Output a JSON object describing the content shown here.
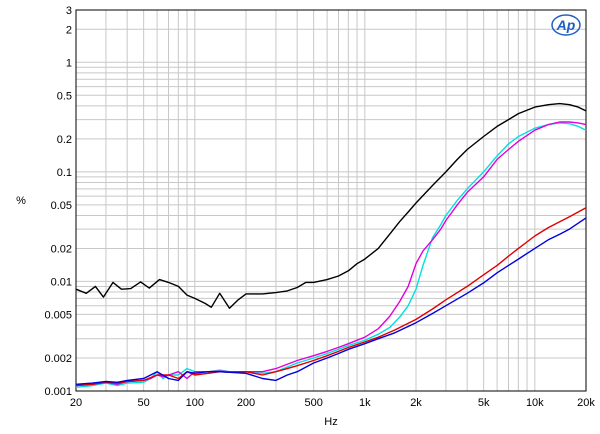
{
  "logo": {
    "text": "Ap",
    "color": "#1f5fbf"
  },
  "chart_data": {
    "type": "line",
    "xscale": "log",
    "yscale": "log",
    "xlim": [
      20,
      20000
    ],
    "ylim": [
      0.001,
      3
    ],
    "xlabel": "Hz",
    "ylabel": "%",
    "grid": true,
    "x_ticks": [
      {
        "v": 20,
        "label": "20"
      },
      {
        "v": 50,
        "label": "50"
      },
      {
        "v": 100,
        "label": "100"
      },
      {
        "v": 200,
        "label": "200"
      },
      {
        "v": 500,
        "label": "500"
      },
      {
        "v": 1000,
        "label": "1k"
      },
      {
        "v": 2000,
        "label": "2k"
      },
      {
        "v": 5000,
        "label": "5k"
      },
      {
        "v": 10000,
        "label": "10k"
      },
      {
        "v": 20000,
        "label": "20k"
      }
    ],
    "y_ticks": [
      {
        "v": 0.001,
        "label": "0.001"
      },
      {
        "v": 0.002,
        "label": "0.002"
      },
      {
        "v": 0.005,
        "label": "0.005"
      },
      {
        "v": 0.01,
        "label": "0.01"
      },
      {
        "v": 0.02,
        "label": "0.02"
      },
      {
        "v": 0.05,
        "label": "0.05"
      },
      {
        "v": 0.1,
        "label": "0.1"
      },
      {
        "v": 0.2,
        "label": "0.2"
      },
      {
        "v": 0.5,
        "label": "0.5"
      },
      {
        "v": 1,
        "label": "1"
      },
      {
        "v": 2,
        "label": "2"
      },
      {
        "v": 3,
        "label": "3"
      }
    ],
    "series": [
      {
        "color": "#000000",
        "points": [
          [
            20,
            0.0085
          ],
          [
            23,
            0.0078
          ],
          [
            26,
            0.009
          ],
          [
            29,
            0.0072
          ],
          [
            33,
            0.0098
          ],
          [
            37,
            0.0085
          ],
          [
            42,
            0.0086
          ],
          [
            48,
            0.0099
          ],
          [
            54,
            0.0087
          ],
          [
            62,
            0.0104
          ],
          [
            70,
            0.0098
          ],
          [
            80,
            0.009
          ],
          [
            90,
            0.0075
          ],
          [
            100,
            0.007
          ],
          [
            115,
            0.0063
          ],
          [
            125,
            0.0058
          ],
          [
            140,
            0.0078
          ],
          [
            160,
            0.0057
          ],
          [
            180,
            0.0068
          ],
          [
            200,
            0.0077
          ],
          [
            250,
            0.0077
          ],
          [
            300,
            0.0079
          ],
          [
            350,
            0.0082
          ],
          [
            400,
            0.0088
          ],
          [
            450,
            0.0098
          ],
          [
            500,
            0.0098
          ],
          [
            600,
            0.0104
          ],
          [
            700,
            0.0112
          ],
          [
            800,
            0.0125
          ],
          [
            900,
            0.0145
          ],
          [
            1000,
            0.016
          ],
          [
            1200,
            0.02
          ],
          [
            1400,
            0.027
          ],
          [
            1600,
            0.035
          ],
          [
            1800,
            0.043
          ],
          [
            2000,
            0.052
          ],
          [
            2500,
            0.075
          ],
          [
            3000,
            0.1
          ],
          [
            3500,
            0.13
          ],
          [
            4000,
            0.16
          ],
          [
            5000,
            0.21
          ],
          [
            6000,
            0.26
          ],
          [
            7000,
            0.3
          ],
          [
            8000,
            0.34
          ],
          [
            10000,
            0.39
          ],
          [
            12000,
            0.41
          ],
          [
            14000,
            0.42
          ],
          [
            16000,
            0.41
          ],
          [
            18000,
            0.39
          ],
          [
            20000,
            0.36
          ]
        ]
      },
      {
        "color": "#00e0e0",
        "points": [
          [
            20,
            0.00108
          ],
          [
            25,
            0.00112
          ],
          [
            30,
            0.00118
          ],
          [
            35,
            0.00112
          ],
          [
            40,
            0.00118
          ],
          [
            50,
            0.0012
          ],
          [
            55,
            0.0013
          ],
          [
            60,
            0.0015
          ],
          [
            65,
            0.0013
          ],
          [
            70,
            0.0014
          ],
          [
            80,
            0.0014
          ],
          [
            90,
            0.0016
          ],
          [
            100,
            0.0015
          ],
          [
            120,
            0.0015
          ],
          [
            140,
            0.00155
          ],
          [
            160,
            0.0015
          ],
          [
            200,
            0.0015
          ],
          [
            250,
            0.00145
          ],
          [
            300,
            0.0015
          ],
          [
            400,
            0.0018
          ],
          [
            500,
            0.002
          ],
          [
            600,
            0.0022
          ],
          [
            700,
            0.0024
          ],
          [
            800,
            0.0026
          ],
          [
            1000,
            0.0029
          ],
          [
            1200,
            0.0033
          ],
          [
            1400,
            0.0038
          ],
          [
            1600,
            0.0047
          ],
          [
            1800,
            0.006
          ],
          [
            2000,
            0.0085
          ],
          [
            2200,
            0.014
          ],
          [
            2500,
            0.025
          ],
          [
            2800,
            0.033
          ],
          [
            3000,
            0.04
          ],
          [
            3500,
            0.055
          ],
          [
            4000,
            0.07
          ],
          [
            5000,
            0.1
          ],
          [
            6000,
            0.14
          ],
          [
            7000,
            0.18
          ],
          [
            8000,
            0.21
          ],
          [
            10000,
            0.25
          ],
          [
            12000,
            0.27
          ],
          [
            14000,
            0.28
          ],
          [
            16000,
            0.275
          ],
          [
            18000,
            0.26
          ],
          [
            20000,
            0.24
          ]
        ]
      },
      {
        "color": "#e000e0",
        "points": [
          [
            20,
            0.00112
          ],
          [
            25,
            0.00115
          ],
          [
            30,
            0.0012
          ],
          [
            35,
            0.00115
          ],
          [
            40,
            0.00122
          ],
          [
            50,
            0.00125
          ],
          [
            55,
            0.0013
          ],
          [
            60,
            0.0014
          ],
          [
            65,
            0.00135
          ],
          [
            70,
            0.0014
          ],
          [
            80,
            0.0015
          ],
          [
            90,
            0.0013
          ],
          [
            100,
            0.0015
          ],
          [
            120,
            0.0015
          ],
          [
            140,
            0.00152
          ],
          [
            160,
            0.0015
          ],
          [
            200,
            0.0015
          ],
          [
            250,
            0.0015
          ],
          [
            300,
            0.0016
          ],
          [
            400,
            0.0019
          ],
          [
            500,
            0.0021
          ],
          [
            600,
            0.0023
          ],
          [
            700,
            0.0025
          ],
          [
            800,
            0.0027
          ],
          [
            1000,
            0.0031
          ],
          [
            1200,
            0.0037
          ],
          [
            1400,
            0.0048
          ],
          [
            1600,
            0.0065
          ],
          [
            1800,
            0.009
          ],
          [
            2000,
            0.0145
          ],
          [
            2200,
            0.019
          ],
          [
            2500,
            0.024
          ],
          [
            2800,
            0.03
          ],
          [
            3000,
            0.036
          ],
          [
            3500,
            0.05
          ],
          [
            4000,
            0.065
          ],
          [
            5000,
            0.09
          ],
          [
            6000,
            0.13
          ],
          [
            7000,
            0.16
          ],
          [
            8000,
            0.19
          ],
          [
            10000,
            0.24
          ],
          [
            12000,
            0.27
          ],
          [
            14000,
            0.285
          ],
          [
            16000,
            0.285
          ],
          [
            18000,
            0.28
          ],
          [
            20000,
            0.27
          ]
        ]
      },
      {
        "color": "#e00000",
        "points": [
          [
            20,
            0.00112
          ],
          [
            25,
            0.00115
          ],
          [
            30,
            0.0012
          ],
          [
            35,
            0.00118
          ],
          [
            40,
            0.00122
          ],
          [
            50,
            0.00125
          ],
          [
            60,
            0.0014
          ],
          [
            70,
            0.0014
          ],
          [
            80,
            0.0013
          ],
          [
            90,
            0.0015
          ],
          [
            100,
            0.0014
          ],
          [
            120,
            0.00145
          ],
          [
            140,
            0.0015
          ],
          [
            160,
            0.00148
          ],
          [
            200,
            0.0015
          ],
          [
            250,
            0.0014
          ],
          [
            300,
            0.0015
          ],
          [
            350,
            0.0016
          ],
          [
            400,
            0.0017
          ],
          [
            500,
            0.0019
          ],
          [
            600,
            0.0021
          ],
          [
            700,
            0.0023
          ],
          [
            800,
            0.0025
          ],
          [
            1000,
            0.0028
          ],
          [
            1200,
            0.0031
          ],
          [
            1500,
            0.0036
          ],
          [
            2000,
            0.0045
          ],
          [
            2500,
            0.0056
          ],
          [
            3000,
            0.0068
          ],
          [
            4000,
            0.009
          ],
          [
            5000,
            0.0115
          ],
          [
            6000,
            0.014
          ],
          [
            7000,
            0.017
          ],
          [
            8000,
            0.02
          ],
          [
            10000,
            0.026
          ],
          [
            12000,
            0.031
          ],
          [
            14000,
            0.035
          ],
          [
            16000,
            0.039
          ],
          [
            18000,
            0.043
          ],
          [
            20000,
            0.047
          ]
        ]
      },
      {
        "color": "#0000e0",
        "points": [
          [
            20,
            0.00115
          ],
          [
            25,
            0.00118
          ],
          [
            30,
            0.00122
          ],
          [
            35,
            0.0012
          ],
          [
            40,
            0.00125
          ],
          [
            50,
            0.0013
          ],
          [
            60,
            0.0015
          ],
          [
            70,
            0.0013
          ],
          [
            80,
            0.00125
          ],
          [
            90,
            0.0015
          ],
          [
            100,
            0.00145
          ],
          [
            120,
            0.0015
          ],
          [
            140,
            0.0015
          ],
          [
            160,
            0.00148
          ],
          [
            200,
            0.00145
          ],
          [
            250,
            0.0013
          ],
          [
            300,
            0.00125
          ],
          [
            350,
            0.0014
          ],
          [
            400,
            0.0015
          ],
          [
            500,
            0.0018
          ],
          [
            600,
            0.002
          ],
          [
            700,
            0.0022
          ],
          [
            800,
            0.0024
          ],
          [
            1000,
            0.0027
          ],
          [
            1200,
            0.003
          ],
          [
            1500,
            0.0034
          ],
          [
            2000,
            0.0042
          ],
          [
            2500,
            0.0051
          ],
          [
            3000,
            0.006
          ],
          [
            4000,
            0.0078
          ],
          [
            5000,
            0.0097
          ],
          [
            6000,
            0.012
          ],
          [
            7000,
            0.014
          ],
          [
            8000,
            0.016
          ],
          [
            10000,
            0.02
          ],
          [
            12000,
            0.024
          ],
          [
            14000,
            0.027
          ],
          [
            16000,
            0.03
          ],
          [
            18000,
            0.034
          ],
          [
            20000,
            0.038
          ]
        ]
      }
    ]
  }
}
